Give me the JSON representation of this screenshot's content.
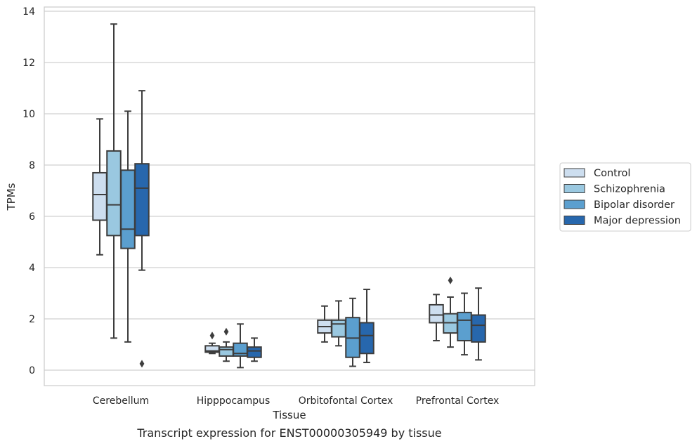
{
  "chart_data": {
    "type": "box",
    "title": "Transcript expression for ENST00000305949 by tissue",
    "xlabel": "Tissue",
    "ylabel": "TPMs",
    "ylim": [
      -0.6,
      14.2
    ],
    "yticks": [
      0,
      2,
      4,
      6,
      8,
      10,
      12,
      14
    ],
    "grid": "horizontal",
    "legend_position": "right",
    "categories": [
      "Cerebellum",
      "Hipppocampus",
      "Orbitofontal Cortex",
      "Prefrontal Cortex"
    ],
    "series": [
      {
        "name": "Control",
        "color": "#cddeef",
        "boxes": [
          {
            "whisker_low": 4.5,
            "q1": 5.85,
            "median": 6.85,
            "q3": 7.7,
            "whisker_high": 9.8,
            "outliers": []
          },
          {
            "whisker_low": 0.65,
            "q1": 0.7,
            "median": 0.75,
            "q3": 0.95,
            "whisker_high": 1.05,
            "outliers": [
              1.35
            ]
          },
          {
            "whisker_low": 1.1,
            "q1": 1.45,
            "median": 1.7,
            "q3": 1.95,
            "whisker_high": 2.5,
            "outliers": []
          },
          {
            "whisker_low": 1.15,
            "q1": 1.85,
            "median": 2.15,
            "q3": 2.55,
            "whisker_high": 2.95,
            "outliers": []
          }
        ]
      },
      {
        "name": "Schizophrenia",
        "color": "#9ac8e0",
        "boxes": [
          {
            "whisker_low": 1.25,
            "q1": 5.25,
            "median": 6.45,
            "q3": 8.55,
            "whisker_high": 13.5,
            "outliers": []
          },
          {
            "whisker_low": 0.35,
            "q1": 0.55,
            "median": 0.8,
            "q3": 0.9,
            "whisker_high": 1.1,
            "outliers": [
              1.5
            ]
          },
          {
            "whisker_low": 0.95,
            "q1": 1.3,
            "median": 1.8,
            "q3": 1.95,
            "whisker_high": 2.7,
            "outliers": []
          },
          {
            "whisker_low": 0.9,
            "q1": 1.45,
            "median": 1.85,
            "q3": 2.2,
            "whisker_high": 2.85,
            "outliers": [
              3.5
            ]
          }
        ]
      },
      {
        "name": "Bipolar disorder",
        "color": "#5b9fcf",
        "boxes": [
          {
            "whisker_low": 1.1,
            "q1": 4.75,
            "median": 5.5,
            "q3": 7.8,
            "whisker_high": 10.1,
            "outliers": []
          },
          {
            "whisker_low": 0.1,
            "q1": 0.55,
            "median": 0.65,
            "q3": 1.05,
            "whisker_high": 1.8,
            "outliers": []
          },
          {
            "whisker_low": 0.15,
            "q1": 0.5,
            "median": 1.25,
            "q3": 2.05,
            "whisker_high": 2.8,
            "outliers": []
          },
          {
            "whisker_low": 0.6,
            "q1": 1.15,
            "median": 1.95,
            "q3": 2.25,
            "whisker_high": 3.0,
            "outliers": []
          }
        ]
      },
      {
        "name": "Major depression",
        "color": "#2767ad",
        "boxes": [
          {
            "whisker_low": 3.9,
            "q1": 5.25,
            "median": 7.1,
            "q3": 8.05,
            "whisker_high": 10.9,
            "outliers": [
              0.25
            ]
          },
          {
            "whisker_low": 0.35,
            "q1": 0.5,
            "median": 0.75,
            "q3": 0.9,
            "whisker_high": 1.25,
            "outliers": []
          },
          {
            "whisker_low": 0.3,
            "q1": 0.65,
            "median": 1.35,
            "q3": 1.85,
            "whisker_high": 3.15,
            "outliers": []
          },
          {
            "whisker_low": 0.4,
            "q1": 1.1,
            "median": 1.75,
            "q3": 2.15,
            "whisker_high": 3.2,
            "outliers": []
          }
        ]
      }
    ]
  }
}
